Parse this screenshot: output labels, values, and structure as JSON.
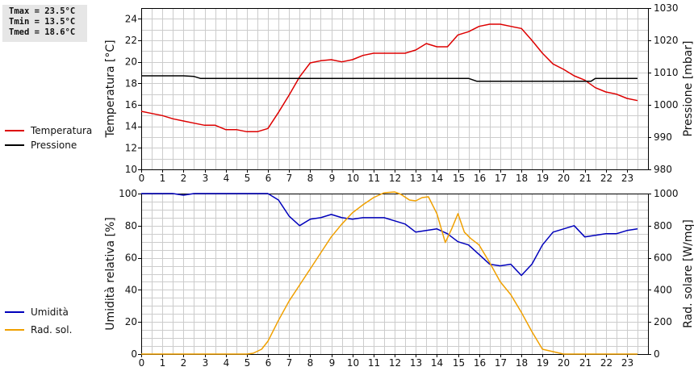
{
  "stats": {
    "tmax": "Tmax = 23.5°C",
    "tmin": "Tmin = 13.5°C",
    "tmed": "Tmed = 18.6°C"
  },
  "colors": {
    "temperatura": "#dd0000",
    "pressione": "#000000",
    "umidita": "#0000bb",
    "radsol": "#f0a000",
    "grid": "#cccccc"
  },
  "chart_data": [
    {
      "type": "line",
      "ylabel": "Temperatura [°C]",
      "y2label": "Pressione [mbar]",
      "xlim": [
        0,
        24
      ],
      "ylim": [
        10,
        25
      ],
      "y2lim": [
        980,
        1030
      ],
      "xticks": [
        "0",
        "1",
        "2",
        "3",
        "4",
        "5",
        "6",
        "7",
        "8",
        "9",
        "10",
        "11",
        "12",
        "13",
        "14",
        "15",
        "16",
        "17",
        "18",
        "19",
        "20",
        "21",
        "22",
        "23"
      ],
      "yticks": [
        "10",
        "12",
        "14",
        "16",
        "18",
        "20",
        "22",
        "24"
      ],
      "y2ticks": [
        "980",
        "990",
        "1000",
        "1010",
        "1020",
        "1030"
      ],
      "grid": true,
      "series": [
        {
          "name": "Temperatura",
          "axis": "left",
          "x": [
            0,
            0.5,
            1,
            1.5,
            2,
            2.5,
            3,
            3.5,
            4,
            4.5,
            5,
            5.5,
            6,
            6.5,
            7,
            7.5,
            8,
            8.5,
            9,
            9.5,
            10,
            10.5,
            11,
            11.5,
            12,
            12.5,
            13,
            13.5,
            14,
            14.5,
            15,
            15.5,
            16,
            16.5,
            17,
            17.5,
            18,
            18.5,
            19,
            19.5,
            20,
            20.5,
            21,
            21.5,
            22,
            22.5,
            23,
            23.5
          ],
          "values": [
            15.4,
            15.2,
            15.0,
            14.7,
            14.5,
            14.3,
            14.1,
            14.1,
            13.7,
            13.7,
            13.5,
            13.5,
            13.8,
            15.3,
            16.9,
            18.6,
            19.9,
            20.1,
            20.2,
            20.0,
            20.2,
            20.6,
            20.8,
            20.8,
            20.8,
            20.8,
            21.1,
            21.7,
            21.4,
            21.4,
            22.5,
            22.8,
            23.3,
            23.5,
            23.5,
            23.3,
            23.1,
            22.0,
            20.8,
            19.8,
            19.3,
            18.7,
            18.3,
            17.6,
            17.2,
            17.0,
            16.6,
            16.4
          ]
        },
        {
          "name": "Pressione",
          "axis": "right",
          "x": [
            0,
            0.5,
            1,
            1.5,
            2,
            2.5,
            2.8,
            3.5,
            4,
            6,
            8,
            10,
            12,
            14,
            15,
            15.5,
            15.9,
            16.5,
            18,
            20,
            21,
            21.3,
            21.5,
            22,
            23,
            23.5
          ],
          "values": [
            1009,
            1009,
            1009,
            1009,
            1009,
            1008.8,
            1008.2,
            1008.2,
            1008.2,
            1008.2,
            1008.2,
            1008.2,
            1008.2,
            1008.2,
            1008.2,
            1008.2,
            1007.3,
            1007.3,
            1007.3,
            1007.3,
            1007.3,
            1007.3,
            1008.2,
            1008.2,
            1008.2,
            1008.2
          ]
        }
      ]
    },
    {
      "type": "line",
      "ylabel": "Umidità relativa [%]",
      "y2label": "Rad. solare [W/mq]",
      "xlim": [
        0,
        24
      ],
      "ylim": [
        0,
        100
      ],
      "y2lim": [
        0,
        1000
      ],
      "xticks": [
        "0",
        "1",
        "2",
        "3",
        "4",
        "5",
        "6",
        "7",
        "8",
        "9",
        "10",
        "11",
        "12",
        "13",
        "14",
        "15",
        "16",
        "17",
        "18",
        "19",
        "20",
        "21",
        "22",
        "23"
      ],
      "yticks": [
        "0",
        "20",
        "40",
        "60",
        "80",
        "100"
      ],
      "y2ticks": [
        "0",
        "200",
        "400",
        "600",
        "800",
        "1000"
      ],
      "grid": true,
      "series": [
        {
          "name": "Umidità",
          "axis": "left",
          "x": [
            0,
            0.5,
            1,
            1.5,
            2,
            2.5,
            3,
            3.5,
            4,
            4.5,
            5,
            5.5,
            6,
            6.5,
            7,
            7.5,
            8,
            8.5,
            9,
            9.5,
            10,
            10.5,
            11,
            11.5,
            12,
            12.5,
            13,
            13.5,
            14,
            14.5,
            15,
            15.5,
            16,
            16.5,
            17,
            17.5,
            18,
            18.5,
            19,
            19.5,
            20,
            20.5,
            21,
            21.5,
            22,
            22.5,
            23,
            23.5
          ],
          "values": [
            100,
            100,
            100,
            100,
            99,
            100,
            100,
            100,
            100,
            100,
            100,
            100,
            100,
            96,
            86,
            80,
            84,
            85,
            87,
            85,
            84,
            85,
            85,
            85,
            83,
            81,
            76,
            77,
            78,
            75,
            70,
            68,
            62,
            56,
            55,
            56,
            49,
            56,
            68,
            76,
            78,
            80,
            73,
            74,
            75,
            75,
            77,
            78
          ]
        },
        {
          "name": "Rad. sol.",
          "axis": "right",
          "x": [
            0,
            1,
            2,
            3,
            4,
            5,
            5.3,
            5.7,
            6,
            6.5,
            7,
            7.5,
            8,
            8.5,
            9,
            9.5,
            10,
            10.5,
            11,
            11.5,
            12,
            12.3,
            12.7,
            13,
            13.3,
            13.6,
            14,
            14.4,
            14.7,
            15,
            15.3,
            15.6,
            16,
            16.5,
            17,
            17.5,
            18,
            18.5,
            19,
            19.5,
            20,
            21,
            22,
            23,
            23.5
          ],
          "values": [
            0,
            0,
            0,
            0,
            0,
            0,
            5,
            30,
            80,
            210,
            330,
            430,
            530,
            630,
            730,
            810,
            880,
            930,
            975,
            1005,
            1010,
            995,
            960,
            955,
            975,
            980,
            875,
            695,
            780,
            875,
            760,
            720,
            680,
            570,
            450,
            370,
            260,
            140,
            30,
            15,
            0,
            0,
            0,
            0,
            0
          ]
        }
      ]
    }
  ]
}
